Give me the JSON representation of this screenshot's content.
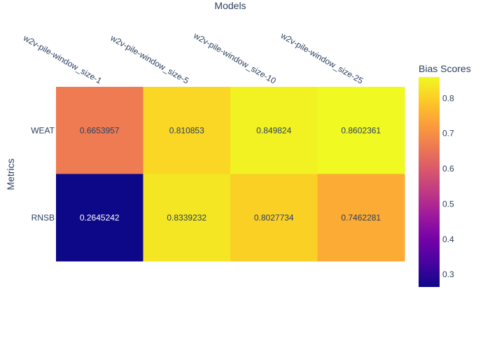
{
  "chart_data": {
    "type": "heatmap",
    "x_title": "Models",
    "y_title": "Metrics",
    "x_categories": [
      "w2v-pile-window_size-1",
      "w2v-pile-window_size-5",
      "w2v-pile-window_size-10",
      "w2v-pile-window_size-25"
    ],
    "y_categories": [
      "WEAT",
      "RNSB"
    ],
    "values": [
      [
        0.6653957,
        0.810853,
        0.849824,
        0.8602361
      ],
      [
        0.2645242,
        0.8339232,
        0.8027734,
        0.7462281
      ]
    ],
    "labels": [
      [
        "0.6653957",
        "0.810853",
        "0.849824",
        "0.8602361"
      ],
      [
        "0.2645242",
        "0.8339232",
        "0.8027734",
        "0.7462281"
      ]
    ],
    "colorbar": {
      "title": "Bias Scores",
      "ticks": [
        "0.3",
        "0.4",
        "0.5",
        "0.6",
        "0.7",
        "0.8"
      ],
      "range": [
        0.2645242,
        0.8602361
      ],
      "colorscale": "plasma"
    },
    "x_axis_side": "top"
  }
}
